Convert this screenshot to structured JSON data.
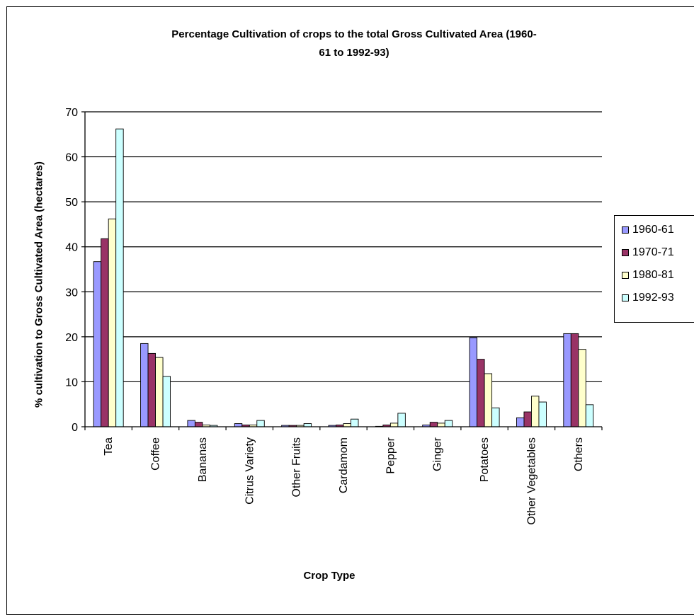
{
  "chart_data": {
    "type": "bar",
    "title": "Percentage Cultivation of crops to the total Gross Cultivated Area (1960-61 to 1992-93)",
    "title_line1": "Percentage Cultivation of crops to the total Gross Cultivated Area (1960-",
    "title_line2": "61 to 1992-93)",
    "xlabel": "Crop Type",
    "ylabel": "% cultivation to Gross Cultivated Area (hectares)",
    "ylim": [
      0,
      70
    ],
    "yticks": [
      0,
      10,
      20,
      30,
      40,
      50,
      60,
      70
    ],
    "grid": true,
    "legend_position": "right",
    "categories": [
      "Tea",
      "Coffee",
      "Bananas",
      "Citrus Variety",
      "Other Fruits",
      "Cardamom",
      "Pepper",
      "Ginger",
      "Potatoes",
      "Other Vegetables",
      "Others"
    ],
    "series": [
      {
        "name": "1960-61",
        "color": "#9999ff",
        "values": [
          36.7,
          18.5,
          1.4,
          0.7,
          0.3,
          0.3,
          0.1,
          0.4,
          19.8,
          2.0,
          20.7
        ]
      },
      {
        "name": "1970-71",
        "color": "#993366",
        "values": [
          41.8,
          16.3,
          1.0,
          0.4,
          0.3,
          0.4,
          0.4,
          1.0,
          15.0,
          3.3,
          20.7
        ]
      },
      {
        "name": "1980-81",
        "color": "#ffffcc",
        "values": [
          46.2,
          15.4,
          0.4,
          0.4,
          0.3,
          0.7,
          0.8,
          0.8,
          11.8,
          6.8,
          17.2
        ]
      },
      {
        "name": "1992-93",
        "color": "#ccffff",
        "values": [
          66.2,
          11.2,
          0.3,
          1.4,
          0.7,
          1.7,
          3.0,
          1.4,
          4.2,
          5.5,
          4.9
        ]
      }
    ]
  }
}
